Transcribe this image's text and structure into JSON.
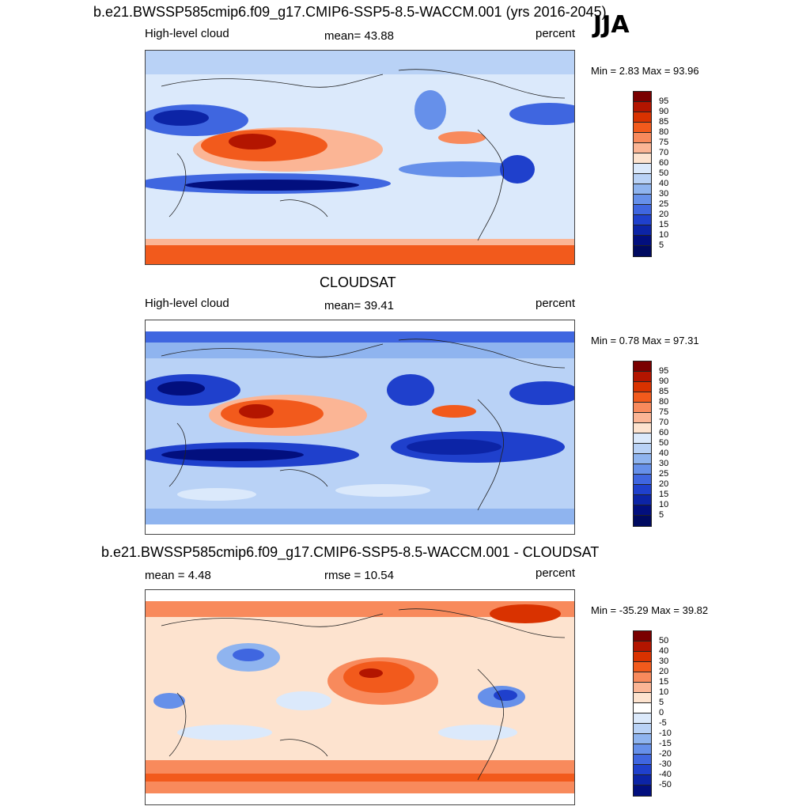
{
  "figure": {
    "season": "JJA",
    "panels": [
      {
        "title": "b.e21.BWSSP585cmip6.f09_g17.CMIP6-SSP5-8.5-WACCM.001 (yrs 2016-2045)",
        "left_label": "High-level cloud",
        "center_label": "mean=  43.88",
        "right_label": "percent",
        "minmax": "Min =   2.83 Max =  93.96"
      },
      {
        "title": "CLOUDSAT",
        "left_label": "High-level cloud",
        "center_label": "mean=  39.41",
        "right_label": "percent",
        "minmax": "Min =   0.78 Max =  97.31"
      },
      {
        "title": "b.e21.BWSSP585cmip6.f09_g17.CMIP6-SSP5-8.5-WACCM.001 - CLOUDSAT",
        "left_label": "mean =   4.48",
        "center_label": "rmse =  10.54",
        "right_label": "percent",
        "minmax": "Min = -35.29 Max =  39.82"
      }
    ]
  },
  "colorbars": {
    "absolute": {
      "labels": [
        "95",
        "90",
        "85",
        "80",
        "75",
        "70",
        "60",
        "50",
        "40",
        "30",
        "25",
        "20",
        "15",
        "10",
        "5"
      ],
      "colors": [
        "#7a0000",
        "#b31500",
        "#d93200",
        "#f25a1c",
        "#f88a5c",
        "#fbb595",
        "#fde3cf",
        "#dbe9fb",
        "#b9d2f6",
        "#8fb4ef",
        "#6690ea",
        "#3f66e0",
        "#1f40cc",
        "#0c24a6",
        "#020f7e",
        "#000a60"
      ]
    },
    "difference": {
      "labels": [
        "50",
        "40",
        "30",
        "20",
        "15",
        "10",
        "5",
        "0",
        "-5",
        "-10",
        "-15",
        "-20",
        "-30",
        "-40",
        "-50"
      ],
      "colors": [
        "#7a0000",
        "#b31500",
        "#d93200",
        "#f25a1c",
        "#f88a5c",
        "#fbb595",
        "#fde3cf",
        "#ffffff",
        "#dbe9fb",
        "#b9d2f6",
        "#8fb4ef",
        "#6690ea",
        "#3f66e0",
        "#1f40cc",
        "#0c24a6",
        "#020f7e"
      ]
    }
  }
}
